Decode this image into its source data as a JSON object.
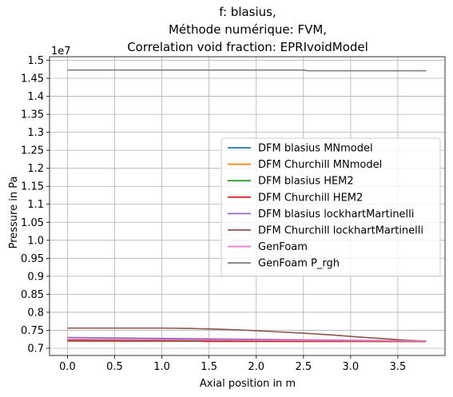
{
  "chart_data": {
    "type": "line",
    "title_lines": [
      "f: blasius,",
      "Méthode numérique: FVM,",
      "Correlation void fraction: EPRIvoidModel"
    ],
    "xlabel": "Axial position in m",
    "ylabel": "Pressure in Pa",
    "y_scale_label": "1e7",
    "xlim": [
      -0.19,
      4.0
    ],
    "ylim": [
      6.8,
      15.1
    ],
    "x_ticks": [
      0.0,
      0.5,
      1.0,
      1.5,
      2.0,
      2.5,
      3.0,
      3.5
    ],
    "x_tick_labels": [
      "0.0",
      "0.5",
      "1.0",
      "1.5",
      "2.0",
      "2.5",
      "3.0",
      "3.5"
    ],
    "y_ticks": [
      7.0,
      7.5,
      8.0,
      8.5,
      9.0,
      9.5,
      10.0,
      10.5,
      11.0,
      11.5,
      12.0,
      12.5,
      13.0,
      13.5,
      14.0,
      14.5,
      15.0
    ],
    "y_tick_labels": [
      "0.7",
      "0.75",
      "0.8",
      "0.85",
      "0.9",
      "0.95",
      "1.0",
      "1.05",
      "1.1",
      "1.15",
      "1.2",
      "1.25",
      "1.3",
      "1.35",
      "1.4",
      "1.45",
      "1.5"
    ],
    "grid": true,
    "legend_position": "center-right",
    "series": [
      {
        "name": "DFM blasius MNmodel",
        "color": "#1f77b4",
        "x": [
          0.0,
          3.8
        ],
        "y": [
          7.22,
          7.19
        ]
      },
      {
        "name": "DFM Churchill MNmodel",
        "color": "#ff7f0e",
        "x": [
          0.0,
          3.8
        ],
        "y": [
          7.21,
          7.19
        ]
      },
      {
        "name": "DFM blasius HEM2",
        "color": "#2ca02c",
        "x": [
          0.0,
          3.8
        ],
        "y": [
          7.2,
          7.19
        ]
      },
      {
        "name": "DFM Churchill HEM2",
        "color": "#d62728",
        "x": [
          0.0,
          1.4,
          1.45,
          3.8
        ],
        "y": [
          7.21,
          7.21,
          7.19,
          7.19
        ]
      },
      {
        "name": "DFM blasius lockhartMartinelli",
        "color": "#9467bd",
        "x": [
          0.0,
          3.8
        ],
        "y": [
          7.3,
          7.2
        ]
      },
      {
        "name": "DFM Churchill lockhartMartinelli",
        "color": "#8c564b",
        "x": [
          0.0,
          0.5,
          1.0,
          1.3,
          1.6,
          1.9,
          2.2,
          2.5,
          2.8,
          3.1,
          3.4,
          3.6,
          3.8
        ],
        "y": [
          7.56,
          7.56,
          7.56,
          7.55,
          7.53,
          7.5,
          7.46,
          7.42,
          7.37,
          7.31,
          7.26,
          7.22,
          7.2
        ]
      },
      {
        "name": "GenFoam",
        "color": "#e377c2",
        "x": [
          0.0,
          3.8
        ],
        "y": [
          7.25,
          7.2
        ]
      },
      {
        "name": "GenFoam P_rgh",
        "color": "#7f7f7f",
        "x": [
          0.0,
          2.5,
          2.55,
          3.8
        ],
        "y": [
          14.73,
          14.73,
          14.71,
          14.71
        ]
      }
    ]
  }
}
